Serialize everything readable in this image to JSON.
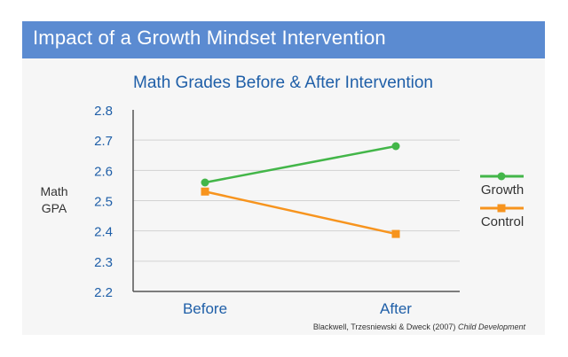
{
  "banner": {
    "title": "Impact of a Growth Mindset Intervention",
    "color": "#5b8bd1"
  },
  "citation": {
    "authors": "Blackwell, Trzesniewski & Dweck (2007)",
    "journal": "Child Development"
  },
  "chart_data": {
    "type": "line",
    "title": "Math Grades Before & After Intervention",
    "xlabel": "",
    "ylabel": "Math GPA",
    "ylabel_lines": [
      "Math",
      "GPA"
    ],
    "categories": [
      "Before",
      "After"
    ],
    "ylim": [
      2.2,
      2.8
    ],
    "yticks": [
      "2.8",
      "2.7",
      "2.6",
      "2.5",
      "2.4",
      "2.3",
      "2.2"
    ],
    "grid": true,
    "legend_position": "right",
    "series": [
      {
        "name": "Growth",
        "values": [
          2.56,
          2.68
        ],
        "color": "#43b649",
        "marker": "circle"
      },
      {
        "name": "Control",
        "values": [
          2.53,
          2.39
        ],
        "color": "#f7941e",
        "marker": "square"
      }
    ]
  }
}
